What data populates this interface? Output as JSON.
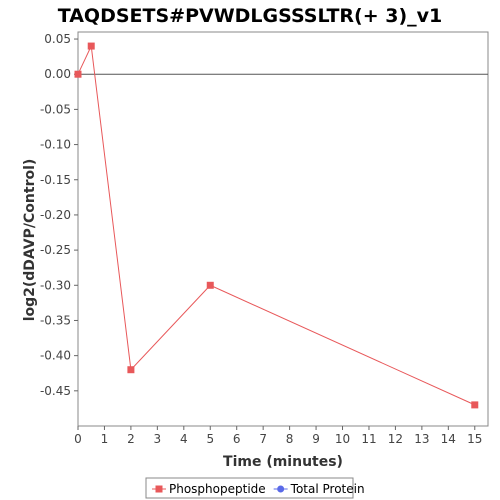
{
  "chart_data": {
    "type": "line",
    "title": "TAQDSETS#PVWDLGSSSLTR(+ 3)_v1",
    "xlabel": "Time (minutes)",
    "ylabel": "log2(dDAVP/Control)",
    "xlim": [
      0,
      15.5
    ],
    "ylim": [
      -0.5,
      0.06
    ],
    "x_ticks": [
      0,
      1,
      2,
      3,
      4,
      5,
      6,
      7,
      8,
      9,
      10,
      11,
      12,
      13,
      14,
      15
    ],
    "x_tick_labels": [
      "0",
      "1",
      "2",
      "3",
      "4",
      "5",
      "6",
      "7",
      "8",
      "9",
      "10",
      "11",
      "12",
      "13",
      "14",
      "15"
    ],
    "y_ticks": [
      0.05,
      0.0,
      -0.05,
      -0.1,
      -0.15,
      -0.2,
      -0.25,
      -0.3,
      -0.35,
      -0.4,
      -0.45
    ],
    "y_tick_labels": [
      "0.05",
      "0.00",
      "-0.05",
      "-0.10",
      "-0.15",
      "-0.20",
      "-0.25",
      "-0.30",
      "-0.35",
      "-0.40",
      "-0.45"
    ],
    "reference_line_y": 0,
    "grid": false,
    "legend_position": "bottom",
    "series": [
      {
        "name": "Phosphopeptide",
        "color": "#e8585a",
        "marker": "square",
        "x": [
          0,
          0.5,
          2,
          5,
          15
        ],
        "y": [
          0.0,
          0.04,
          -0.42,
          -0.3,
          -0.47
        ]
      },
      {
        "name": "Total Protein",
        "color": "#5a6ae8",
        "marker": "circle",
        "x": [],
        "y": []
      }
    ]
  }
}
